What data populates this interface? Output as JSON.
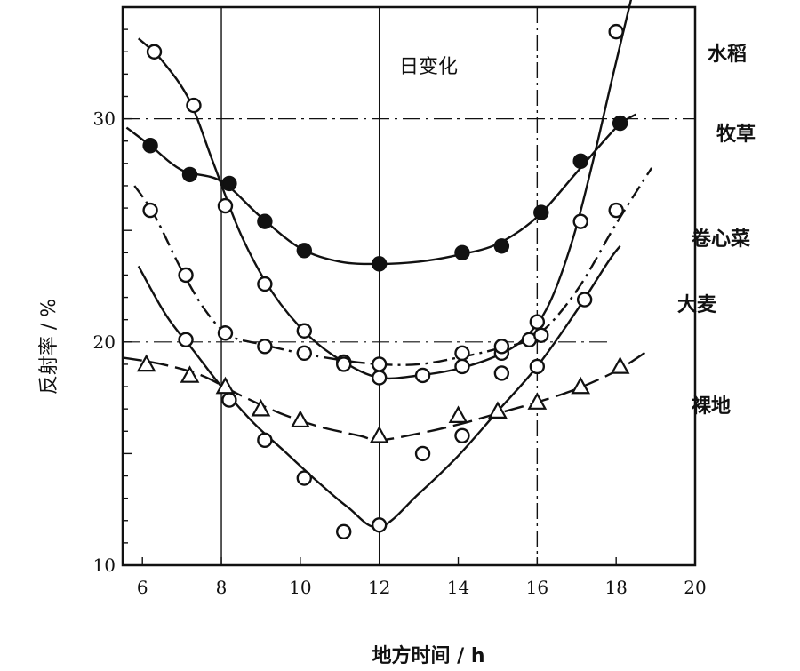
{
  "chart_data": {
    "type": "line",
    "title": "",
    "annotation": "日变化",
    "xlabel": "地方时间 / h",
    "ylabel": "反射率 / %",
    "xlim": [
      5.5,
      20
    ],
    "ylim": [
      10,
      35
    ],
    "x_ticks": [
      "6",
      "8",
      "10",
      "12",
      "14",
      "16",
      "18",
      "20"
    ],
    "y_ticks": [
      "10",
      "20",
      "30"
    ],
    "grid": "vertical lines at 8, 12, 16 h; horizontal lines at 20% and 30%",
    "series": [
      {
        "name": "水稻",
        "marker": "open-circle",
        "line": "solid",
        "points": [
          [
            6.3,
            33.0
          ],
          [
            7.3,
            30.6
          ],
          [
            8.1,
            26.1
          ],
          [
            9.1,
            22.6
          ],
          [
            10.1,
            20.5
          ],
          [
            11.1,
            19.1
          ],
          [
            12.0,
            18.4
          ],
          [
            13.1,
            18.5
          ],
          [
            14.1,
            18.9
          ],
          [
            15.1,
            19.5
          ],
          [
            16.0,
            20.9
          ],
          [
            17.1,
            25.4
          ],
          [
            18.0,
            33.9
          ]
        ],
        "curve": [
          [
            5.9,
            33.6
          ],
          [
            6.5,
            32.6
          ],
          [
            7.2,
            30.8
          ],
          [
            7.8,
            28.0
          ],
          [
            8.5,
            24.8
          ],
          [
            9.3,
            22.2
          ],
          [
            10.2,
            20.3
          ],
          [
            11.1,
            19.1
          ],
          [
            12.0,
            18.4
          ],
          [
            13.0,
            18.5
          ],
          [
            14.0,
            18.8
          ],
          [
            15.0,
            19.4
          ],
          [
            15.7,
            20.2
          ],
          [
            16.3,
            21.7
          ],
          [
            16.9,
            24.6
          ],
          [
            17.4,
            28.0
          ],
          [
            17.9,
            31.8
          ],
          [
            18.4,
            35.5
          ]
        ]
      },
      {
        "name": "牧草",
        "marker": "filled-circle",
        "line": "solid",
        "points": [
          [
            6.2,
            28.8
          ],
          [
            7.2,
            27.5
          ],
          [
            8.2,
            27.1
          ],
          [
            9.1,
            25.4
          ],
          [
            10.1,
            24.1
          ],
          [
            12.0,
            23.5
          ],
          [
            14.1,
            24.0
          ],
          [
            15.1,
            24.3
          ],
          [
            16.1,
            25.8
          ],
          [
            17.1,
            28.1
          ],
          [
            18.1,
            29.8
          ]
        ],
        "curve": [
          [
            5.6,
            29.6
          ],
          [
            6.2,
            28.8
          ],
          [
            7.0,
            27.7
          ],
          [
            8.0,
            27.2
          ],
          [
            9.0,
            25.6
          ],
          [
            10.0,
            24.2
          ],
          [
            11.0,
            23.6
          ],
          [
            12.0,
            23.5
          ],
          [
            13.0,
            23.6
          ],
          [
            14.0,
            23.9
          ],
          [
            15.0,
            24.4
          ],
          [
            16.0,
            25.6
          ],
          [
            17.0,
            27.6
          ],
          [
            18.0,
            29.6
          ],
          [
            18.5,
            30.2
          ]
        ]
      },
      {
        "name": "卷心菜",
        "marker": "open-circle",
        "line": "dash-dot",
        "points": [
          [
            6.2,
            25.9
          ],
          [
            7.1,
            23.0
          ],
          [
            8.1,
            20.4
          ],
          [
            9.1,
            19.8
          ],
          [
            10.1,
            19.5
          ],
          [
            11.1,
            19.0
          ],
          [
            12.0,
            19.0
          ],
          [
            14.1,
            19.5
          ],
          [
            15.1,
            19.8
          ],
          [
            15.8,
            20.1
          ],
          [
            16.1,
            20.3
          ],
          [
            18.0,
            25.9
          ]
        ],
        "curve": [
          [
            5.8,
            27.0
          ],
          [
            6.3,
            25.7
          ],
          [
            7.0,
            23.2
          ],
          [
            7.6,
            21.4
          ],
          [
            8.2,
            20.3
          ],
          [
            9.0,
            19.9
          ],
          [
            10.0,
            19.5
          ],
          [
            11.0,
            19.2
          ],
          [
            12.0,
            19.0
          ],
          [
            13.0,
            19.0
          ],
          [
            14.0,
            19.3
          ],
          [
            15.0,
            19.7
          ],
          [
            16.0,
            20.3
          ],
          [
            17.0,
            22.3
          ],
          [
            18.0,
            25.3
          ],
          [
            18.9,
            27.8
          ]
        ]
      },
      {
        "name": "大麦",
        "marker": "open-circle",
        "line": "solid",
        "points": [
          [
            7.1,
            20.1
          ],
          [
            8.2,
            17.4
          ],
          [
            9.1,
            15.6
          ],
          [
            10.1,
            13.9
          ],
          [
            11.1,
            11.5
          ],
          [
            12.0,
            11.8
          ],
          [
            13.1,
            15.0
          ],
          [
            14.1,
            15.8
          ],
          [
            15.1,
            18.6
          ],
          [
            16.0,
            18.9
          ],
          [
            17.2,
            21.9
          ]
        ],
        "curve": [
          [
            5.9,
            23.4
          ],
          [
            6.6,
            21.2
          ],
          [
            7.3,
            19.6
          ],
          [
            8.0,
            18.0
          ],
          [
            8.8,
            16.4
          ],
          [
            9.6,
            15.1
          ],
          [
            10.4,
            13.8
          ],
          [
            11.2,
            12.6
          ],
          [
            12.0,
            11.7
          ],
          [
            13.0,
            13.2
          ],
          [
            14.0,
            14.9
          ],
          [
            15.0,
            16.9
          ],
          [
            16.0,
            18.9
          ],
          [
            17.0,
            21.4
          ],
          [
            17.8,
            23.6
          ],
          [
            18.1,
            24.3
          ]
        ]
      },
      {
        "name": "裸地",
        "marker": "open-triangle",
        "line": "long-dash",
        "points": [
          [
            6.1,
            19.0
          ],
          [
            7.2,
            18.5
          ],
          [
            8.1,
            18.0
          ],
          [
            9.0,
            17.0
          ],
          [
            10.0,
            16.5
          ],
          [
            12.0,
            15.8
          ],
          [
            14.0,
            16.7
          ],
          [
            15.0,
            16.9
          ],
          [
            16.0,
            17.3
          ],
          [
            17.1,
            18.0
          ],
          [
            18.1,
            18.9
          ]
        ],
        "curve": [
          [
            5.5,
            19.3
          ],
          [
            6.5,
            19.0
          ],
          [
            7.5,
            18.5
          ],
          [
            8.5,
            17.6
          ],
          [
            9.5,
            16.8
          ],
          [
            10.5,
            16.2
          ],
          [
            11.5,
            15.8
          ],
          [
            12.0,
            15.6
          ],
          [
            13.0,
            15.9
          ],
          [
            14.0,
            16.3
          ],
          [
            15.0,
            16.8
          ],
          [
            16.0,
            17.3
          ],
          [
            17.0,
            17.9
          ],
          [
            18.0,
            18.7
          ],
          [
            18.8,
            19.6
          ]
        ]
      }
    ]
  },
  "colors": {
    "ink": "#111111",
    "background": "#ffffff"
  }
}
